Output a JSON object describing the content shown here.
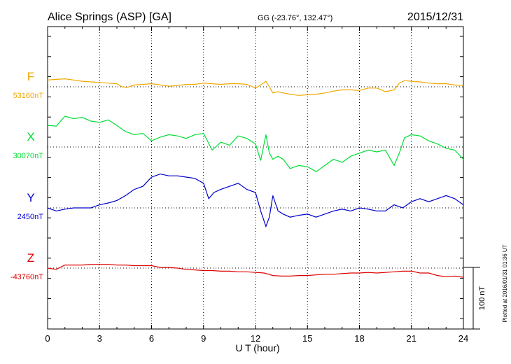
{
  "header": {
    "station": "Alice Springs (ASP)  [GA]",
    "coords": "GG (-23.76°, 132.47°)",
    "date": "2015/12/31"
  },
  "plotted_note": "Plotted at 2016/01/31 01:36 UT",
  "scale_bar_label": "100 nT",
  "colors": {
    "F": "#f0a800",
    "X": "#00dd33",
    "Y": "#0000cc",
    "Z": "#dd0000",
    "axis": "#000000"
  },
  "chart_data": {
    "type": "line",
    "xlabel": "U T (hour)",
    "xlim": [
      0,
      24
    ],
    "x_ticks": [
      0,
      3,
      6,
      9,
      12,
      15,
      18,
      21,
      24
    ],
    "x_tick_labels": [
      "0",
      "3",
      "6",
      "9",
      "12",
      "15",
      "18",
      "21",
      "24"
    ],
    "grid": true,
    "series": [
      {
        "name": "F",
        "baseline_label": "53160nT",
        "baseline": 53160,
        "unit": "nT",
        "x": [
          0,
          0.5,
          1,
          1.5,
          2,
          2.5,
          3,
          3.5,
          4,
          4.3,
          4.6,
          5,
          5.5,
          6,
          6.5,
          7,
          7.5,
          8,
          8.5,
          9,
          9.5,
          10,
          10.5,
          11,
          11.5,
          12,
          12.3,
          12.6,
          12.8,
          13,
          13.3,
          13.6,
          14,
          14.5,
          15,
          15.5,
          16,
          16.5,
          17,
          17.5,
          18,
          18.5,
          19,
          19.5,
          20,
          20.3,
          20.6,
          21,
          21.5,
          22,
          22.5,
          23,
          23.5,
          24
        ],
        "y": [
          11,
          12,
          13,
          11,
          9,
          8,
          7,
          6,
          5,
          0,
          -1,
          3,
          4,
          5,
          3,
          1,
          2,
          4,
          4,
          6,
          5,
          4,
          5,
          5,
          4,
          -2,
          3,
          9,
          0,
          -10,
          -8,
          -10,
          -12,
          -14,
          -13,
          -12,
          -10,
          -7,
          -5,
          -5,
          -6,
          -2,
          -2,
          -8,
          -5,
          6,
          10,
          9,
          8,
          6,
          5,
          5,
          3,
          2
        ]
      },
      {
        "name": "X",
        "baseline_label": "30070nT",
        "baseline": 30070,
        "unit": "nT",
        "x": [
          0,
          0.5,
          1,
          1.5,
          2,
          2.5,
          3,
          3.5,
          4,
          4.5,
          5,
          5.5,
          6,
          6.5,
          7,
          7.5,
          8,
          8.5,
          9,
          9.5,
          10,
          10.5,
          11,
          11.5,
          12,
          12.3,
          12.6,
          12.8,
          13,
          13.3,
          13.6,
          14,
          14.5,
          15,
          15.5,
          16,
          16.5,
          17,
          17.5,
          18,
          18.5,
          19,
          19.5,
          20,
          20.3,
          20.6,
          21,
          21.5,
          22,
          22.5,
          23,
          23.5,
          24
        ],
        "y": [
          35,
          34,
          50,
          46,
          48,
          42,
          40,
          44,
          35,
          25,
          20,
          22,
          10,
          16,
          20,
          18,
          14,
          20,
          22,
          -5,
          8,
          3,
          18,
          14,
          5,
          -22,
          20,
          -10,
          -20,
          -15,
          -20,
          -35,
          -30,
          -32,
          -40,
          -30,
          -20,
          -25,
          -15,
          -10,
          -5,
          -8,
          -5,
          -30,
          -10,
          15,
          20,
          18,
          10,
          5,
          -2,
          -5,
          -20
        ]
      },
      {
        "name": "Y",
        "baseline_label": "2450nT",
        "baseline": 2450,
        "unit": "nT",
        "x": [
          0,
          0.5,
          1,
          1.5,
          2,
          2.5,
          3,
          3.5,
          4,
          4.5,
          5,
          5.5,
          6,
          6.5,
          7,
          7.5,
          8,
          8.5,
          9,
          9.3,
          9.6,
          10,
          10.5,
          11,
          11.5,
          12,
          12.3,
          12.6,
          12.8,
          13,
          13.3,
          13.6,
          14,
          14.5,
          15,
          15.5,
          16,
          16.5,
          17,
          17.5,
          18,
          18.5,
          19,
          19.5,
          20,
          20.5,
          21,
          21.5,
          22,
          22.5,
          23,
          23.5,
          24
        ],
        "y": [
          0,
          -5,
          -2,
          0,
          0,
          0,
          5,
          8,
          12,
          20,
          30,
          35,
          50,
          55,
          52,
          52,
          50,
          48,
          40,
          15,
          25,
          30,
          35,
          40,
          30,
          25,
          -5,
          -30,
          -15,
          20,
          -5,
          -10,
          -15,
          -12,
          -10,
          -15,
          -10,
          -5,
          -2,
          -5,
          0,
          -2,
          -5,
          -5,
          5,
          0,
          10,
          15,
          10,
          15,
          20,
          15,
          5
        ]
      },
      {
        "name": "Z",
        "baseline_label": "-43760nT",
        "baseline": -43760,
        "unit": "nT",
        "x": [
          0,
          0.5,
          1,
          1.5,
          2,
          2.5,
          3,
          3.5,
          4,
          4.5,
          5,
          5.5,
          6,
          6.5,
          7,
          7.5,
          8,
          8.5,
          9,
          9.5,
          10,
          10.5,
          11,
          11.5,
          12,
          12.5,
          13,
          13.5,
          14,
          14.5,
          15,
          15.5,
          16,
          16.5,
          17,
          17.5,
          18,
          18.5,
          19,
          19.5,
          20,
          20.5,
          21,
          21.5,
          22,
          22.5,
          23,
          23.5,
          24
        ],
        "y": [
          0,
          -2,
          5,
          5,
          5,
          6,
          6,
          6,
          5,
          5,
          4,
          4,
          4,
          1,
          1,
          0,
          -2,
          -3,
          -4,
          -4,
          -5,
          -5,
          -6,
          -6,
          -7,
          -8,
          -12,
          -13,
          -13,
          -12,
          -12,
          -11,
          -10,
          -10,
          -9,
          -8,
          -8,
          -7,
          -8,
          -7,
          -6,
          -5,
          -5,
          -8,
          -8,
          -12,
          -14,
          -13,
          -15
        ]
      }
    ]
  }
}
